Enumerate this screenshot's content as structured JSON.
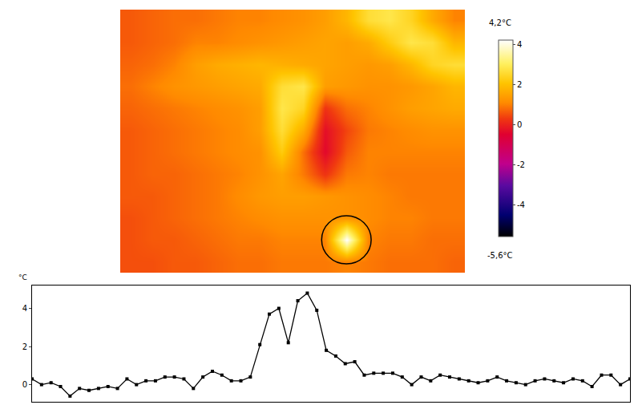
{
  "chart_data": [
    {
      "type": "heatmap",
      "cells": [
        [
          0.6,
          0.7,
          0.8,
          0.8,
          0.9,
          1.0,
          1.0,
          1.1,
          1.2,
          1.4,
          1.8,
          2.6,
          2.8,
          2.4,
          1.6,
          1.0
        ],
        [
          0.6,
          0.7,
          0.8,
          1.0,
          1.0,
          1.1,
          1.2,
          1.3,
          1.4,
          1.5,
          1.4,
          1.6,
          2.2,
          2.8,
          2.6,
          1.8
        ],
        [
          0.7,
          0.8,
          1.0,
          1.4,
          1.6,
          1.7,
          1.8,
          1.7,
          1.6,
          1.5,
          1.4,
          1.3,
          1.4,
          1.8,
          2.4,
          2.6
        ],
        [
          0.8,
          1.0,
          1.2,
          1.3,
          1.4,
          1.5,
          1.6,
          2.6,
          2.8,
          1.4,
          1.3,
          1.2,
          1.2,
          1.3,
          1.5,
          1.8
        ],
        [
          0.7,
          0.8,
          0.9,
          1.0,
          1.1,
          1.2,
          1.4,
          2.8,
          2.4,
          0.2,
          0.8,
          1.0,
          1.2,
          1.4,
          1.5,
          1.6
        ],
        [
          0.6,
          0.7,
          0.8,
          0.9,
          1.0,
          1.1,
          1.4,
          2.6,
          1.6,
          -0.3,
          0.4,
          0.9,
          1.0,
          1.1,
          1.2,
          1.2
        ],
        [
          0.6,
          0.7,
          0.8,
          0.9,
          1.0,
          1.1,
          1.2,
          2.2,
          0.8,
          -0.4,
          0.6,
          1.0,
          1.0,
          1.0,
          1.0,
          1.0
        ],
        [
          0.6,
          0.7,
          0.7,
          0.8,
          0.9,
          1.0,
          1.2,
          1.5,
          0.9,
          0.2,
          0.9,
          1.0,
          0.9,
          0.9,
          0.9,
          0.9
        ],
        [
          0.6,
          0.6,
          0.7,
          0.8,
          0.9,
          1.1,
          1.3,
          1.4,
          1.4,
          1.3,
          1.2,
          1.1,
          1.0,
          0.9,
          0.9,
          0.9
        ],
        [
          0.5,
          0.6,
          0.7,
          0.8,
          0.9,
          1.0,
          1.1,
          1.2,
          1.2,
          1.2,
          1.2,
          1.1,
          1.0,
          1.0,
          0.9,
          0.9
        ],
        [
          0.5,
          0.6,
          0.6,
          0.7,
          0.8,
          0.9,
          0.9,
          1.0,
          1.0,
          1.0,
          4.2,
          1.0,
          0.9,
          0.9,
          0.8,
          0.8
        ],
        [
          0.5,
          0.5,
          0.6,
          0.6,
          0.7,
          0.8,
          0.8,
          0.9,
          0.9,
          0.9,
          1.0,
          0.9,
          0.8,
          0.8,
          0.8,
          0.7
        ]
      ],
      "colorbar_range": [
        -5.6,
        4.2
      ],
      "colorbar_ticks": [
        -4,
        -2,
        0,
        2,
        4
      ],
      "colorbar_max_label": "4,2°C",
      "colorbar_min_label": "-5,6°C",
      "tick_labels": false
    },
    {
      "type": "line",
      "y_label": "°C",
      "values": [
        0.3,
        0.0,
        0.1,
        -0.1,
        -0.6,
        -0.2,
        -0.3,
        -0.2,
        -0.1,
        -0.2,
        0.3,
        0.0,
        0.2,
        0.2,
        0.4,
        0.4,
        0.3,
        -0.2,
        0.4,
        0.7,
        0.5,
        0.2,
        0.2,
        0.4,
        2.1,
        3.7,
        4.0,
        2.2,
        4.4,
        4.8,
        3.9,
        1.8,
        1.5,
        1.1,
        1.2,
        0.5,
        0.6,
        0.6,
        0.6,
        0.4,
        0.0,
        0.4,
        0.2,
        0.5,
        0.4,
        0.3,
        0.2,
        0.1,
        0.2,
        0.4,
        0.2,
        0.1,
        0.0,
        0.2,
        0.3,
        0.2,
        0.1,
        0.3,
        0.2,
        -0.1,
        0.5,
        0.5,
        0.0,
        0.3
      ],
      "xlim": [
        0,
        63
      ],
      "ylim": [
        -0.9,
        5.2
      ],
      "yticks": [
        0,
        2,
        4
      ],
      "tick_labels": "y",
      "color": "#000000",
      "marker": "square",
      "grid": false
    }
  ]
}
